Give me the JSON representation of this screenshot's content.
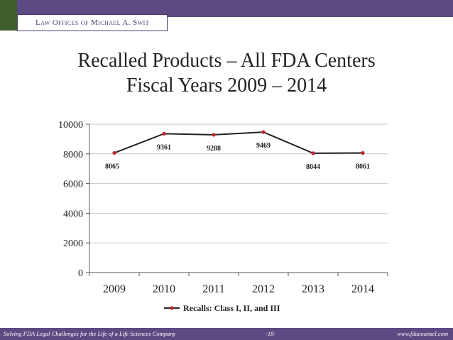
{
  "slide": {
    "firm_name": "Law Offices of Michael A. Swit",
    "title_line1": "Recalled Products – All FDA Centers",
    "title_line2": "Fiscal Years 2009 – 2014"
  },
  "footer": {
    "left": "Solving FDA Legal Challenges for the Life of a Life Sciences Company",
    "center": "-18-",
    "right": "www.fdacounsel.com"
  },
  "chart_data": {
    "type": "line",
    "categories": [
      "2009",
      "2010",
      "2011",
      "2012",
      "2013",
      "2014"
    ],
    "series": [
      {
        "name": "Recalls: Class I, II, and III",
        "values": [
          8065,
          9361,
          9288,
          9469,
          8044,
          8061
        ]
      }
    ],
    "data_labels": [
      "8065",
      "9361",
      "9288",
      "9469",
      "8044",
      "8061"
    ],
    "ylim": [
      0,
      10000
    ],
    "yticks": [
      0,
      2000,
      4000,
      6000,
      8000,
      10000
    ],
    "ytick_labels": [
      "0",
      "2000",
      "4000",
      "6000",
      "8000",
      "10000"
    ],
    "grid": true,
    "legend": "bottom",
    "colors": {
      "line": "#222222",
      "marker": "#c0262c",
      "grid": "#c8c8c8"
    }
  }
}
